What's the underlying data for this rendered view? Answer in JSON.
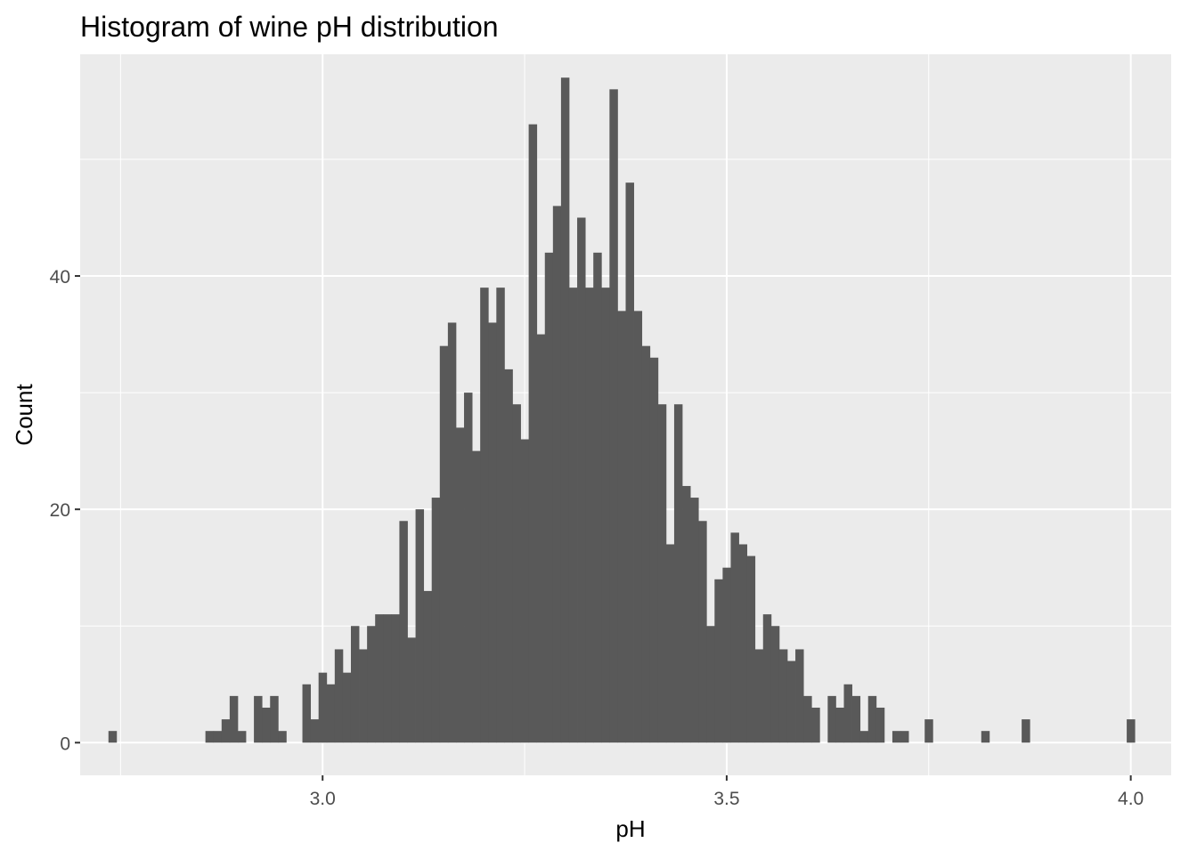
{
  "chart_data": {
    "type": "bar",
    "title": "Histogram of wine pH distribution",
    "xlabel": "pH",
    "ylabel": "Count",
    "xlim": [
      2.7,
      4.05
    ],
    "ylim": [
      -2.8,
      59
    ],
    "x_ticks": [
      3.0,
      3.5,
      4.0
    ],
    "x_tick_labels": [
      "3.0",
      "3.5",
      "4.0"
    ],
    "y_ticks": [
      0,
      20,
      40
    ],
    "y_tick_labels": [
      "0",
      "20",
      "40"
    ],
    "grid": true,
    "bin_start": 2.735,
    "bin_width": 0.01,
    "values": [
      1,
      0,
      0,
      0,
      0,
      0,
      0,
      0,
      0,
      0,
      0,
      0,
      1,
      1,
      2,
      4,
      1,
      0,
      4,
      3,
      4,
      1,
      0,
      0,
      5,
      2,
      6,
      5,
      8,
      6,
      10,
      8,
      10,
      11,
      11,
      11,
      19,
      9,
      20,
      13,
      21,
      34,
      36,
      27,
      30,
      25,
      39,
      36,
      39,
      32,
      29,
      26,
      53,
      35,
      42,
      46,
      57,
      39,
      45,
      39,
      42,
      39,
      56,
      37,
      48,
      37,
      34,
      33,
      29,
      17,
      29,
      22,
      21,
      19,
      10,
      14,
      15,
      18,
      17,
      16,
      8,
      11,
      10,
      8,
      7,
      8,
      4,
      3,
      0,
      4,
      3,
      5,
      4,
      1,
      4,
      3,
      0,
      1,
      1,
      0,
      0,
      2,
      0,
      0,
      0,
      0,
      0,
      0,
      1,
      0,
      0,
      0,
      0,
      2,
      0,
      0,
      0,
      0,
      0,
      0,
      0,
      0,
      0,
      0,
      0,
      0,
      2
    ]
  }
}
